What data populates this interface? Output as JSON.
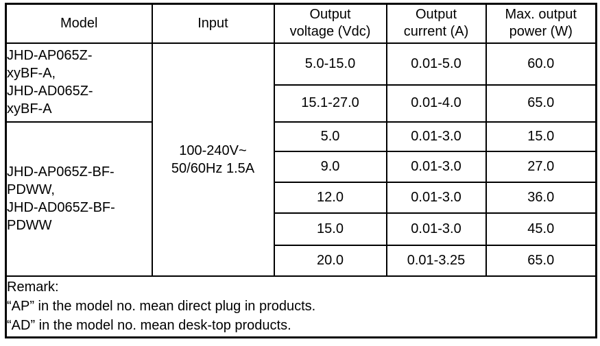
{
  "table": {
    "border_color": "#000000",
    "background_color": "#ffffff",
    "text_color": "#000000",
    "headers": {
      "model": "Model",
      "input": "Input",
      "voltage": {
        "line1": "Output",
        "line2": "voltage (Vdc)"
      },
      "current": {
        "line1": "Output",
        "line2": "current (A)"
      },
      "power": {
        "line1": "Max. output",
        "line2": "power (W)"
      }
    },
    "model_groups": [
      {
        "lines": [
          "JHD-AP065Z-",
          "xyBF-A,",
          "JHD-AD065Z-",
          "xyBF-A"
        ],
        "full_name": "JHD-AP065Z-xyBF-A, JHD-AD065Z-xyBF-A"
      },
      {
        "lines": [
          "JHD-AP065Z-BF-",
          "PDWW,",
          "JHD-AD065Z-BF-",
          "PDWW"
        ],
        "full_name": "JHD-AP065Z-BF-PDWW, JHD-AD065Z-BF-PDWW"
      }
    ],
    "input_value": {
      "line1": "100-240V~",
      "line2": "50/60Hz 1.5A",
      "full": "100-240V~ 50/60Hz 1.5A"
    },
    "rows": [
      {
        "voltage": "5.0-15.0",
        "current": "0.01-5.0",
        "power": "60.0"
      },
      {
        "voltage": "15.1-27.0",
        "current": "0.01-4.0",
        "power": "65.0"
      },
      {
        "voltage": "5.0",
        "current": "0.01-3.0",
        "power": "15.0"
      },
      {
        "voltage": "9.0",
        "current": "0.01-3.0",
        "power": "27.0"
      },
      {
        "voltage": "12.0",
        "current": "0.01-3.0",
        "power": "36.0"
      },
      {
        "voltage": "15.0",
        "current": "0.01-3.0",
        "power": "45.0"
      },
      {
        "voltage": "20.0",
        "current": "0.01-3.25",
        "power": "65.0"
      }
    ],
    "remark": {
      "title": "Remark:",
      "line_ap": "“AP” in the model no. mean direct plug in products.",
      "line_ad": "“AD” in the model no. mean desk-top products."
    }
  }
}
